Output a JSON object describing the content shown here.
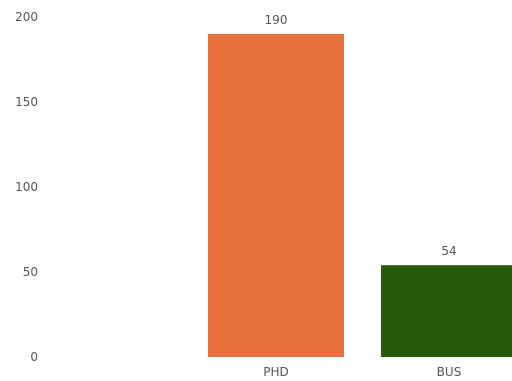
{
  "chart_data": {
    "type": "bar",
    "categories": [
      "PHD",
      "BUS"
    ],
    "values": [
      190,
      54
    ],
    "colors": [
      "#E8703A",
      "#275A0B"
    ],
    "ylim": [
      0,
      200
    ],
    "yticks": [
      0,
      50,
      100,
      150,
      200
    ],
    "ytick_labels": [
      "0",
      "50",
      "100",
      "150",
      "200"
    ],
    "data_labels": [
      "190",
      "54"
    ],
    "grid": false,
    "legend": "none"
  }
}
